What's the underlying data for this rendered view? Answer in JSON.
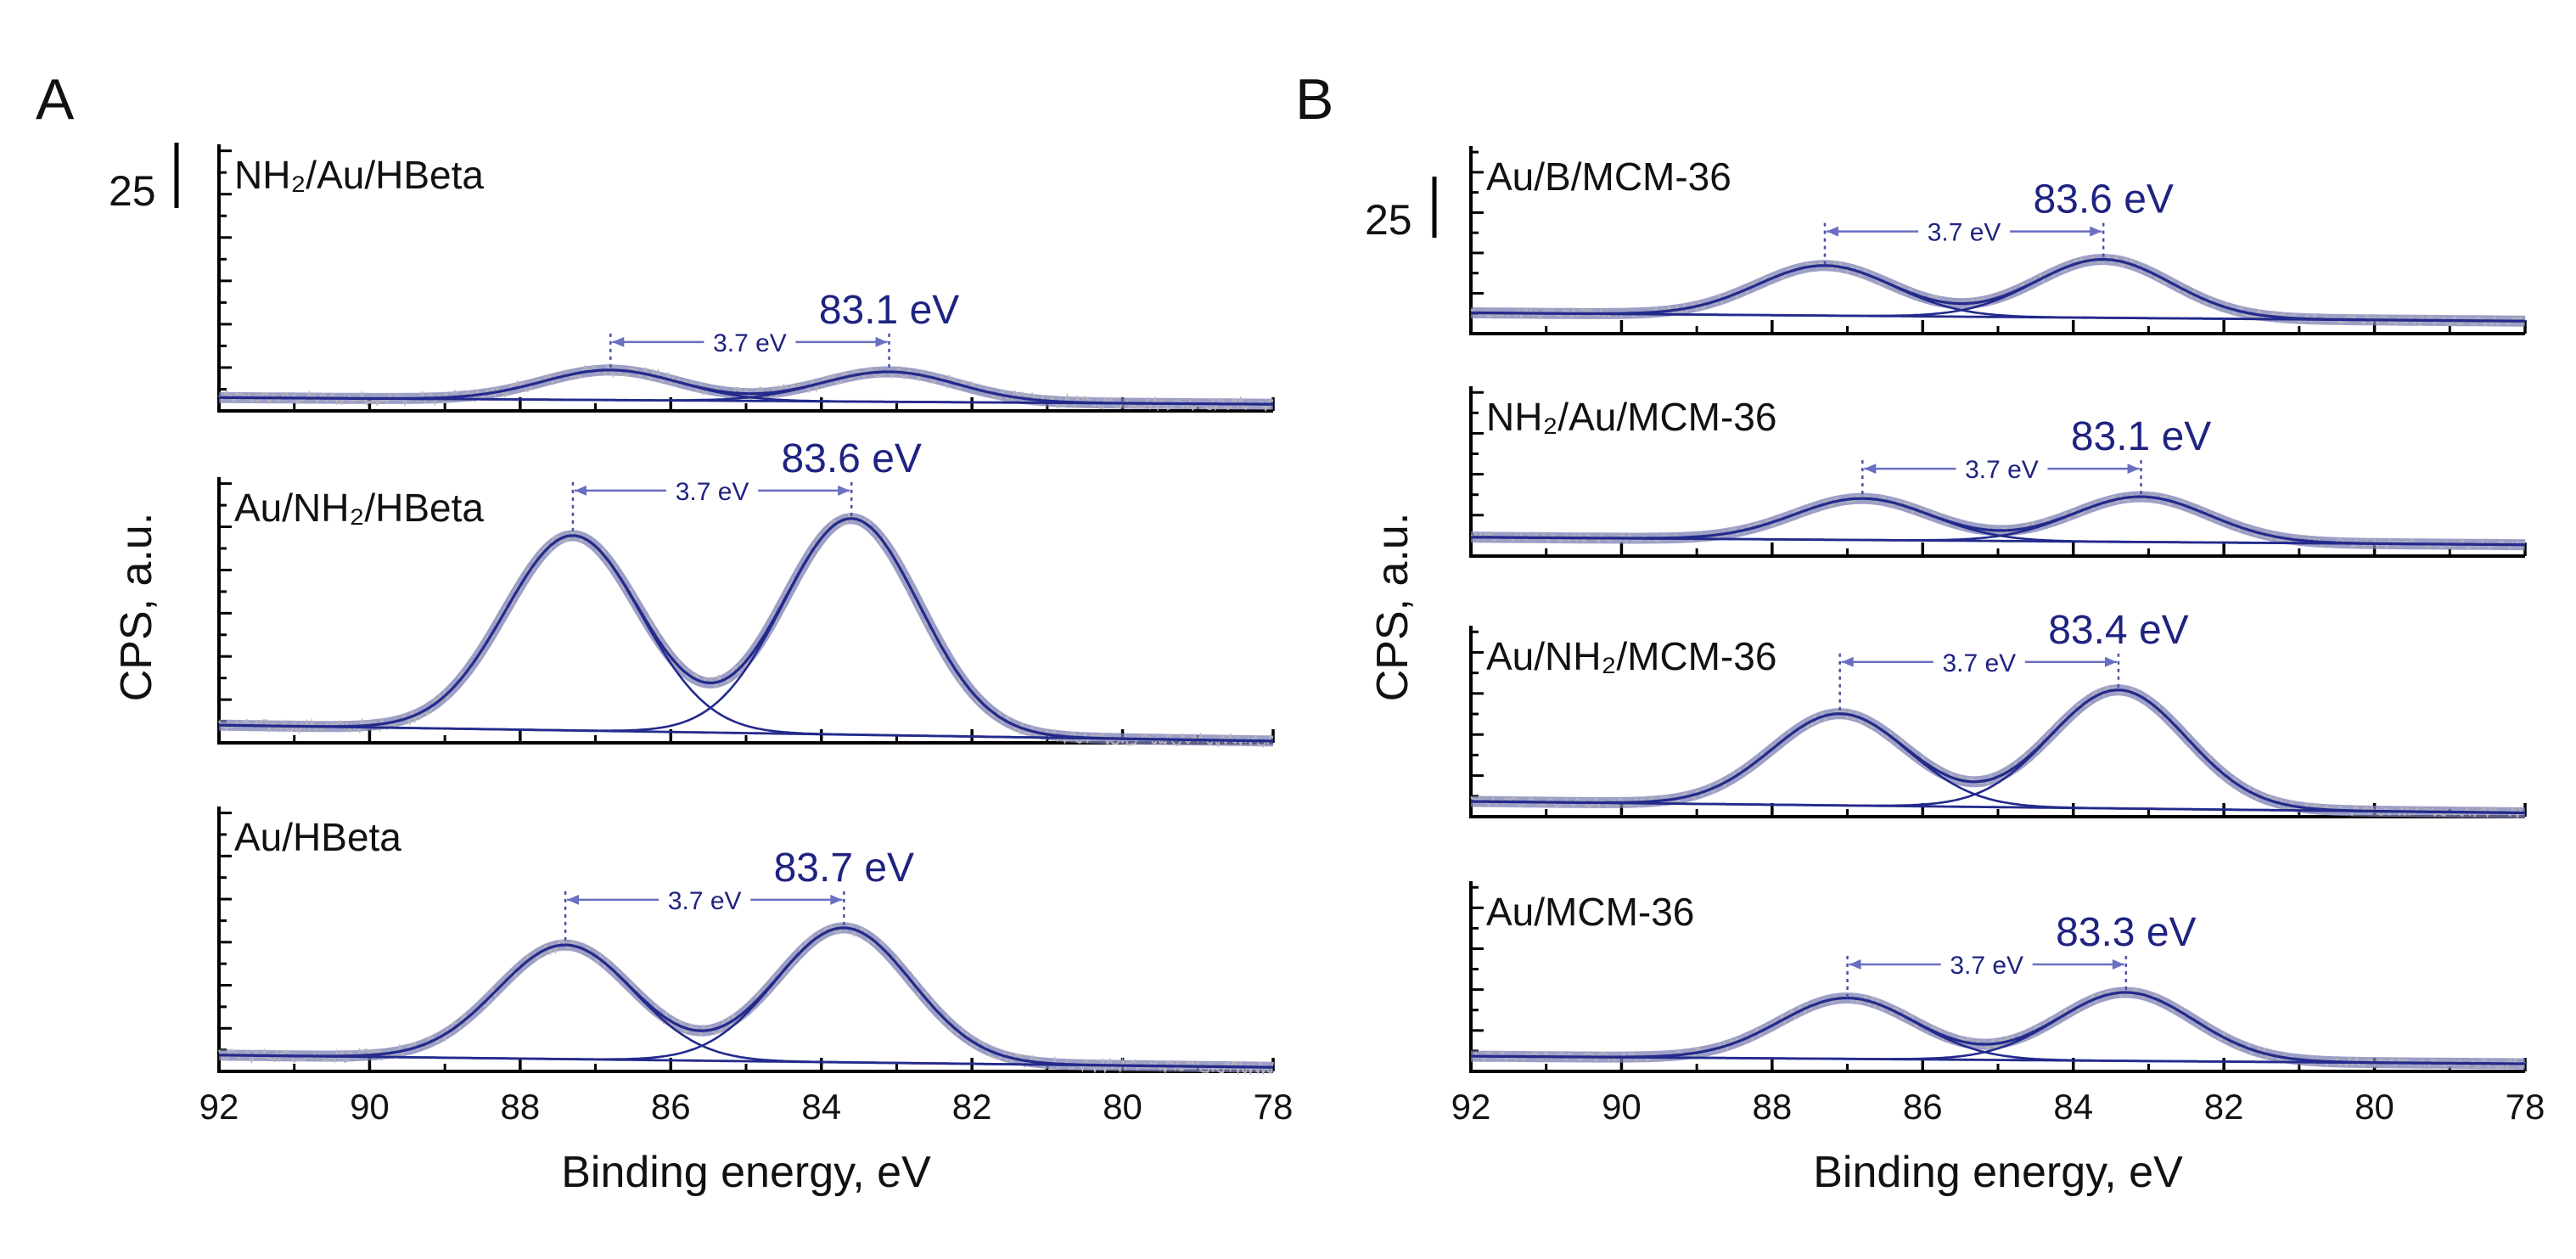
{
  "chart_data": [
    {
      "panel": "A",
      "type": "line",
      "xlabel": "Binding energy, eV",
      "ylabel": "CPS, a.u.",
      "xlim": [
        92,
        78
      ],
      "xticks": [
        92,
        90,
        88,
        86,
        84,
        82,
        80,
        78
      ],
      "scale_bar_label": "25",
      "separation_label": "3.7 eV",
      "subplots": [
        {
          "sample": "NH₂/Au/HBeta",
          "peak_label": "83.1 eV",
          "peak_positions": [
            86.8,
            83.1
          ],
          "peak_heights": [
            0.9,
            0.9
          ],
          "background": [
            0.4,
            0.2
          ],
          "ylim": [
            0,
            8
          ]
        },
        {
          "sample": "Au/NH₂/HBeta",
          "peak_label": "83.6 eV",
          "peak_positions": [
            87.3,
            83.6
          ],
          "peak_heights": [
            5.5,
            6.1
          ],
          "background": [
            0.5,
            0.05
          ],
          "ylim": [
            0,
            7.5
          ]
        },
        {
          "sample": "Au/HBeta",
          "peak_label": "83.7 eV",
          "peak_positions": [
            87.4,
            83.7
          ],
          "peak_heights": [
            2.8,
            3.3
          ],
          "background": [
            0.4,
            0.1
          ],
          "ylim": [
            0,
            6.5
          ]
        }
      ]
    },
    {
      "panel": "B",
      "type": "line",
      "xlabel": "Binding energy, eV",
      "ylabel": "CPS, a.u.",
      "xlim": [
        92,
        78
      ],
      "xticks": [
        92,
        90,
        88,
        86,
        84,
        82,
        80,
        78
      ],
      "scale_bar_label": "25",
      "separation_label": "3.7 eV",
      "subplots": [
        {
          "sample": "Au/B/MCM-36",
          "peak_label": "83.6 eV",
          "peak_positions": [
            87.3,
            83.6
          ],
          "peak_heights": [
            1.2,
            1.4
          ],
          "background": [
            0.5,
            0.3
          ],
          "ylim": [
            0,
            4.5
          ]
        },
        {
          "sample": "NH₂/Au/MCM-36",
          "peak_label": "83.1 eV",
          "peak_positions": [
            86.8,
            83.1
          ],
          "peak_heights": [
            1.1,
            1.2
          ],
          "background": [
            0.5,
            0.3
          ],
          "ylim": [
            0,
            4.5
          ]
        },
        {
          "sample": "Au/NH₂/MCM-36",
          "peak_label": "83.4 eV",
          "peak_positions": [
            87.1,
            83.4
          ],
          "peak_heights": [
            2.4,
            3.1
          ],
          "background": [
            0.4,
            0.1
          ],
          "ylim": [
            0,
            5
          ]
        },
        {
          "sample": "Au/MCM-36",
          "peak_label": "83.3 eV",
          "peak_positions": [
            87.0,
            83.3
          ],
          "peak_heights": [
            1.6,
            1.8
          ],
          "background": [
            0.4,
            0.2
          ],
          "ylim": [
            0,
            5
          ]
        }
      ]
    }
  ]
}
